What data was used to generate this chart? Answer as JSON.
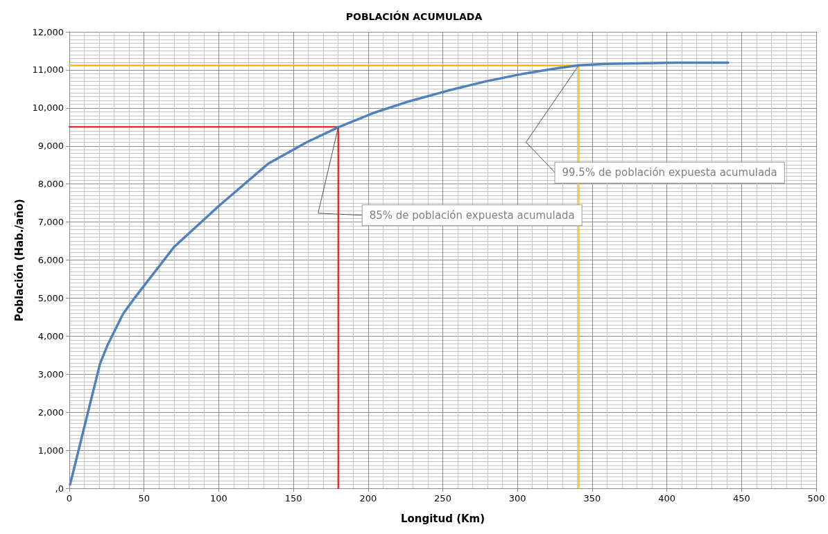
{
  "chart_data": {
    "type": "line",
    "title": "POBLACIÓN ACUMULADA",
    "xlabel": "Longitud (Km)",
    "ylabel": "Población (Hab./año)",
    "xlim": [
      0,
      500
    ],
    "xticks": [
      0,
      50,
      100,
      150,
      200,
      250,
      300,
      350,
      400,
      450,
      500
    ],
    "ylim": [
      0,
      12000
    ],
    "yticks": [
      {
        "value": 0,
        "label": ",0"
      },
      {
        "value": 1000,
        "label": "1,000"
      },
      {
        "value": 2000,
        "label": "2,000"
      },
      {
        "value": 3000,
        "label": "3,000"
      },
      {
        "value": 4000,
        "label": "4,000"
      },
      {
        "value": 5000,
        "label": "5,000"
      },
      {
        "value": 6000,
        "label": "6,000"
      },
      {
        "value": 7000,
        "label": "7,000"
      },
      {
        "value": 8000,
        "label": "8,000"
      },
      {
        "value": 9000,
        "label": "9,000"
      },
      {
        "value": 10000,
        "label": "10,000"
      },
      {
        "value": 11000,
        "label": "11,000"
      },
      {
        "value": 12000,
        "label": "12,000"
      }
    ],
    "grid": true,
    "marker": "none",
    "series": [
      {
        "color": "#4f81bd",
        "x": [
          0.5,
          20.5,
          25.4,
          36,
          44,
          70,
          100,
          133,
          159,
          180,
          203,
          228,
          254,
          279,
          304,
          326,
          341,
          359,
          406,
          441
        ],
        "values": [
          100,
          3270,
          3750,
          4590,
          5020,
          6340,
          7420,
          8530,
          9100,
          9490,
          9860,
          10180,
          10460,
          10700,
          10900,
          11040,
          11120,
          11160,
          11190,
          11190
        ]
      },
      {
        "color": "#ff0000",
        "x": [
          0,
          180,
          180
        ],
        "values": [
          9500,
          9500,
          0
        ]
      },
      {
        "color": "#ffc000",
        "x": [
          0,
          341,
          341
        ],
        "values": [
          11120,
          11120,
          0
        ]
      }
    ],
    "annotations": [
      {
        "text": "85% de población expuesta acumulada",
        "x": 180,
        "y": 9490
      },
      {
        "text": "99.5% de población expuesta acumulada",
        "x": 341,
        "y": 11120
      }
    ]
  }
}
